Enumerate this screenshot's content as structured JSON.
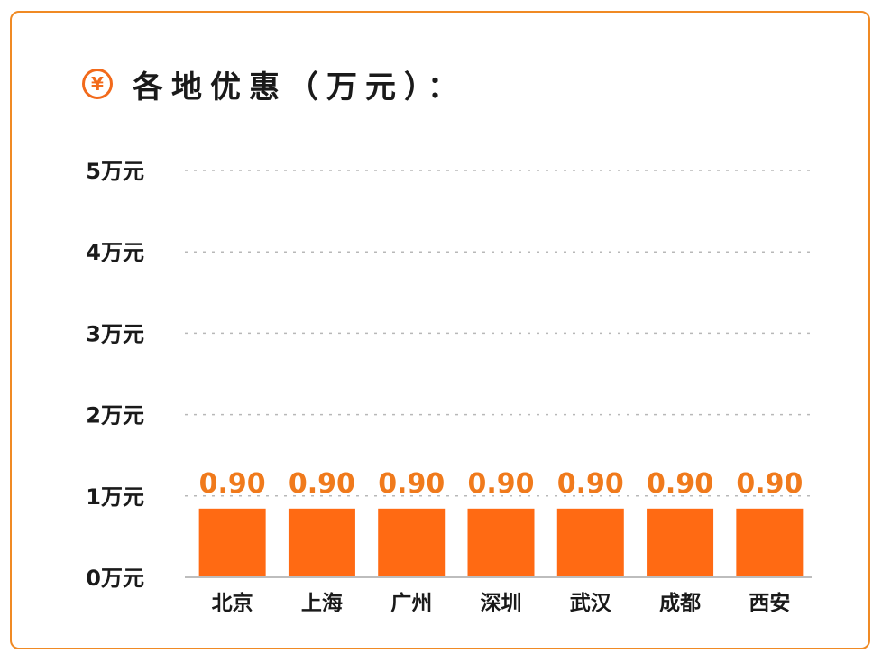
{
  "header": {
    "icon": "yen-circle-icon",
    "icon_glyph": "¥",
    "title": "各地优惠（万元）："
  },
  "colors": {
    "border": "#f08a24",
    "bar": "#ff6a13",
    "data_label": "#f07a1c",
    "grid": "#b8b8b8",
    "text": "#1a1a1a"
  },
  "chart_data": {
    "type": "bar",
    "title": "各地优惠（万元）：",
    "xlabel": "",
    "ylabel": "",
    "categories": [
      "北京",
      "上海",
      "广州",
      "深圳",
      "武汉",
      "成都",
      "西安"
    ],
    "values": [
      0.9,
      0.9,
      0.9,
      0.9,
      0.9,
      0.9,
      0.9
    ],
    "data_labels": [
      "0.90",
      "0.90",
      "0.90",
      "0.90",
      "0.90",
      "0.90",
      "0.90"
    ],
    "ylim": [
      0,
      5
    ],
    "yticks": [
      0,
      1,
      2,
      3,
      4,
      5
    ],
    "ytick_labels": [
      "0万元",
      "1万元",
      "2万元",
      "3万元",
      "4万元",
      "5万元"
    ],
    "grid": true,
    "legend": "none"
  }
}
